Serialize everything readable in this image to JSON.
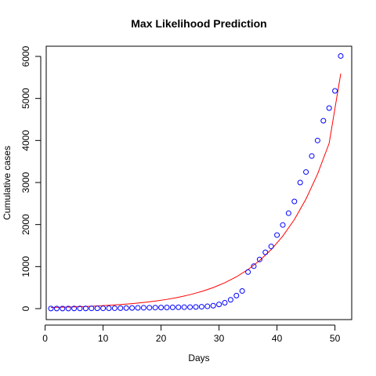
{
  "chart_data": {
    "type": "scatter",
    "title": "Max Likelihood Prediction",
    "xlabel": "Days",
    "ylabel": "Cumulative cases",
    "xlim": [
      1,
      51
    ],
    "ylim": [
      0,
      6000
    ],
    "x_ticks": [
      0,
      10,
      20,
      30,
      40,
      50
    ],
    "y_ticks": [
      0,
      1000,
      2000,
      3000,
      4000,
      5000,
      6000
    ],
    "grid": false,
    "legend": "none",
    "colors": {
      "points": "#0000ff",
      "fit_line": "#ff0000",
      "axis": "#000000"
    },
    "series": [
      {
        "kind": "points",
        "x": [
          1,
          2,
          3,
          4,
          5,
          6,
          7,
          8,
          9,
          10,
          11,
          12,
          13,
          14,
          15,
          16,
          17,
          18,
          19,
          20,
          21,
          22,
          23,
          24,
          25,
          26,
          27,
          28,
          29,
          30,
          31,
          32,
          33,
          34,
          35,
          36,
          37,
          38,
          39,
          40,
          41,
          42,
          43,
          44,
          45,
          46,
          47,
          48,
          49,
          50,
          51
        ],
        "y": [
          2,
          2,
          3,
          3,
          4,
          4,
          5,
          6,
          7,
          8,
          9,
          10,
          12,
          14,
          16,
          18,
          20,
          22,
          24,
          26,
          28,
          30,
          32,
          34,
          36,
          40,
          45,
          55,
          70,
          100,
          140,
          210,
          310,
          420,
          870,
          1010,
          1170,
          1340,
          1480,
          1750,
          1990,
          2270,
          2550,
          3000,
          3250,
          3630,
          4000,
          4470,
          4770,
          5180,
          6010
        ]
      },
      {
        "kind": "line",
        "x": [
          1,
          3,
          5,
          7,
          9,
          11,
          13,
          15,
          17,
          19,
          21,
          23,
          25,
          27,
          29,
          31,
          33,
          35,
          37,
          39,
          41,
          43,
          45,
          47,
          49,
          51
        ],
        "y": [
          28,
          34,
          42,
          52,
          64,
          79,
          97,
          119,
          146,
          179,
          220,
          270,
          332,
          408,
          501,
          616,
          757,
          930,
          1143,
          1404,
          1725,
          2120,
          2606,
          3202,
          3934,
          5590
        ]
      }
    ]
  }
}
